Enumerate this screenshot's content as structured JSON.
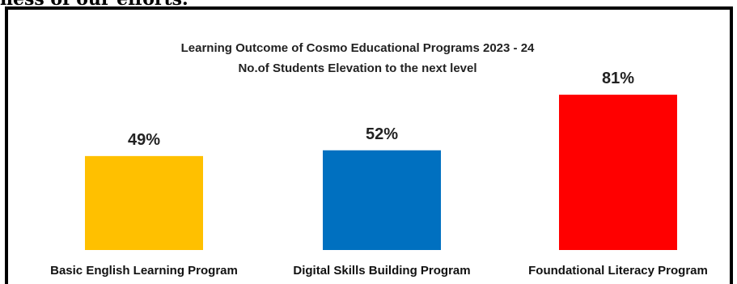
{
  "document": {
    "caption_fragment": "ness of our efforts."
  },
  "chart_data": {
    "type": "bar",
    "title": "Learning Outcome of Cosmo Educational Programs 2023 - 24",
    "subtitle": "No.of Students  Elevation to the next level",
    "categories": [
      "Basic English Learning Program",
      "Digital Skills Building Program",
      "Foundational Literacy Program"
    ],
    "values": [
      49,
      52,
      81
    ],
    "value_labels": [
      "49%",
      "52%",
      "81%"
    ],
    "colors": [
      "#FFC000",
      "#0070C0",
      "#FF0000"
    ],
    "ylim": [
      0,
      100
    ],
    "grid": false,
    "legend": "none",
    "xlabel": "",
    "ylabel": ""
  }
}
